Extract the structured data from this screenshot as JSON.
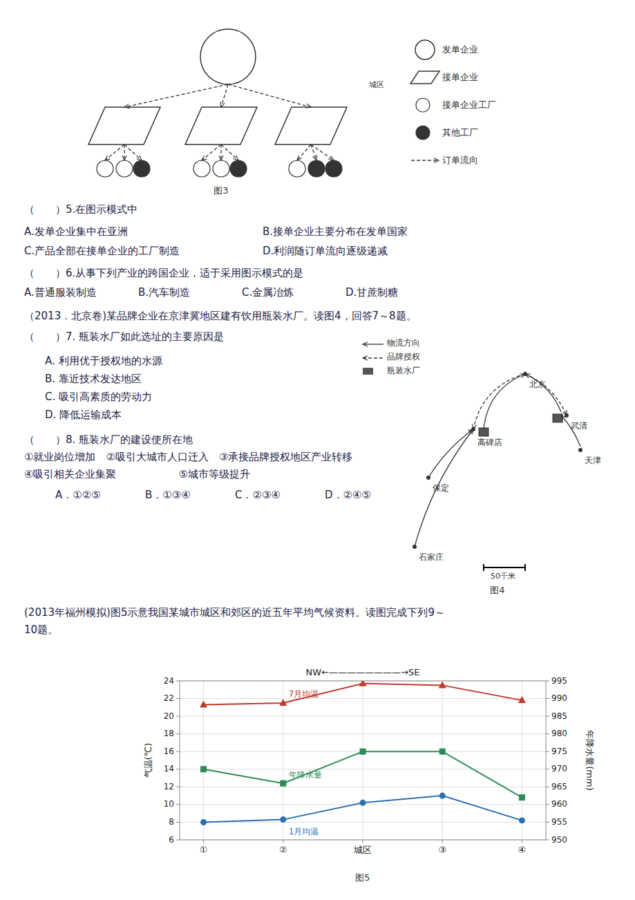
{
  "chart_data": {
    "type": "line",
    "title": "NW←————————→SE",
    "categories": [
      "①",
      "②",
      "城区",
      "③",
      "④"
    ],
    "series": [
      {
        "name": "7月均温",
        "values": [
          21.3,
          21.5,
          23.7,
          23.5,
          21.8
        ],
        "marker": "triangle",
        "color": "#c0392b"
      },
      {
        "name": "1月均温",
        "values": [
          8.0,
          8.3,
          10.2,
          11.0,
          8.2
        ],
        "marker": "circle",
        "color": "#2a6fb0"
      },
      {
        "name": "年降水量",
        "values": [
          970,
          966,
          975,
          975,
          962
        ],
        "marker": "square",
        "color": "#2e8b57",
        "axis": "y2"
      }
    ],
    "y_label": "气温(℃)",
    "y2_label": "年降水量(mm)",
    "ylim": [
      6,
      24
    ],
    "yticks": [
      6,
      8,
      10,
      12,
      14,
      16,
      18,
      20,
      22,
      24
    ],
    "y2lim": [
      950,
      995
    ],
    "y2ticks": [
      950,
      955,
      960,
      965,
      970,
      975,
      980,
      985,
      990,
      995
    ],
    "grid": true,
    "annotations": [
      "发单企业",
      "接单企业",
      "接单企业工厂",
      "其他工厂",
      "订单流向",
      "图3",
      "城区",
      "（　　）5.在图示模式中",
      "A.发单企业集中在亚洲",
      "B.接单企业主要分布在发单国家",
      "C.产品全部在接单企业的工厂制造",
      "D.利润随订单流向逐级递减",
      "（　　）6.从事下列产业的跨国企业，适于采用图示模式的是",
      "A.普通服装制造",
      "B.汽车制造",
      "C.金属冶炼",
      "D.甘蔗制糖",
      "（2013．北京卷)某品牌企业在京津冀地区建有饮用瓶装水厂。读图4，回答7～8题。",
      "（　　）7. 瓶装水厂如此选址的主要原因是",
      "物流方向",
      "品牌授权",
      "瓶装水厂",
      "北京",
      "武清",
      "天津",
      "高碑店",
      "保定",
      "石家庄",
      "50千米",
      "图4",
      "A. 利用优于授权地的水源",
      "B. 靠近技术发达地区",
      "C. 吸引高素质的劳动力",
      "D. 降低运输成本",
      "（　　）8. 瓶装水厂的建设使所在地",
      "①就业岗位增加　②吸引大城市人口迁入　③承接品牌授权地区产业转移",
      "④吸引相关企业集聚　　　　　　⑤城市等级提升",
      "A．①②⑤",
      "B．①③④",
      "C．②③④",
      "D．②④⑤",
      "(2013年福州模拟)图5示意我国某城市城区和郊区的近五年平均气候资料。读图完成下列9～",
      "10题。",
      "图5"
    ]
  }
}
